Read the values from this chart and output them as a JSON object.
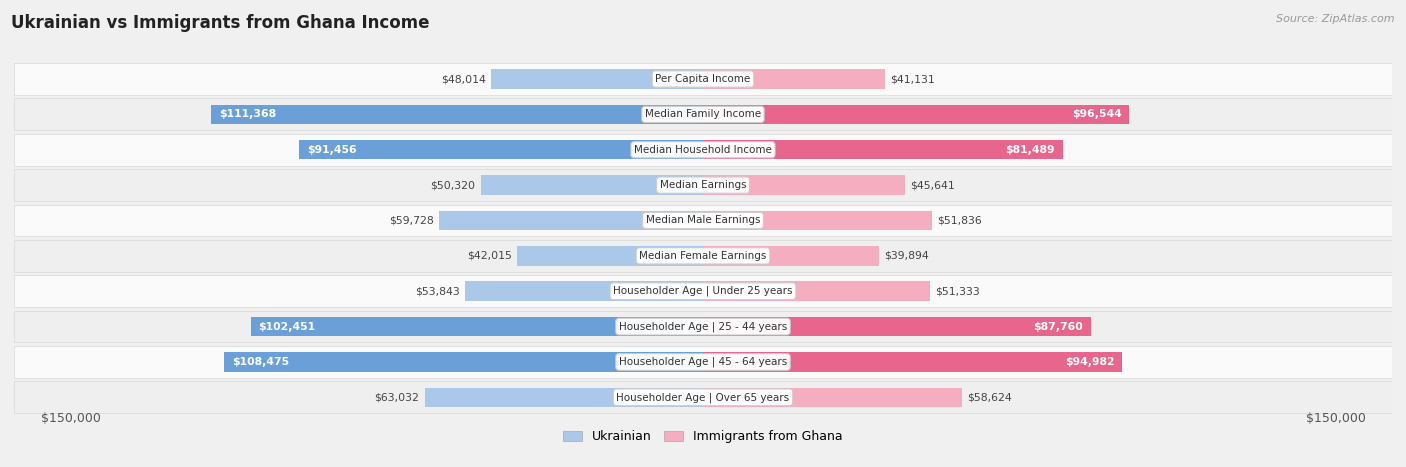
{
  "title": "Ukrainian vs Immigrants from Ghana Income",
  "source": "Source: ZipAtlas.com",
  "categories": [
    "Per Capita Income",
    "Median Family Income",
    "Median Household Income",
    "Median Earnings",
    "Median Male Earnings",
    "Median Female Earnings",
    "Householder Age | Under 25 years",
    "Householder Age | 25 - 44 years",
    "Householder Age | 45 - 64 years",
    "Householder Age | Over 65 years"
  ],
  "ukrainian_values": [
    48014,
    111368,
    91456,
    50320,
    59728,
    42015,
    53843,
    102451,
    108475,
    63032
  ],
  "ghana_values": [
    41131,
    96544,
    81489,
    45641,
    51836,
    39894,
    51333,
    87760,
    94982,
    58624
  ],
  "ukrainian_labels": [
    "$48,014",
    "$111,368",
    "$91,456",
    "$50,320",
    "$59,728",
    "$42,015",
    "$53,843",
    "$102,451",
    "$108,475",
    "$63,032"
  ],
  "ghana_labels": [
    "$41,131",
    "$96,544",
    "$81,489",
    "$45,641",
    "$51,836",
    "$39,894",
    "$51,333",
    "$87,760",
    "$94,982",
    "$58,624"
  ],
  "ukrainian_color_light": "#abc8e8",
  "ukrainian_color_dark": "#6a9fd8",
  "ghana_color_light": "#f5adc0",
  "ghana_color_dark": "#e8668e",
  "max_value": 150000,
  "x_label_left": "$150,000",
  "x_label_right": "$150,000",
  "legend_ukrainian": "Ukrainian",
  "legend_ghana": "Immigrants from Ghana",
  "background_color": "#f0f0f0",
  "row_even_color": "#fafafa",
  "row_odd_color": "#efefef"
}
